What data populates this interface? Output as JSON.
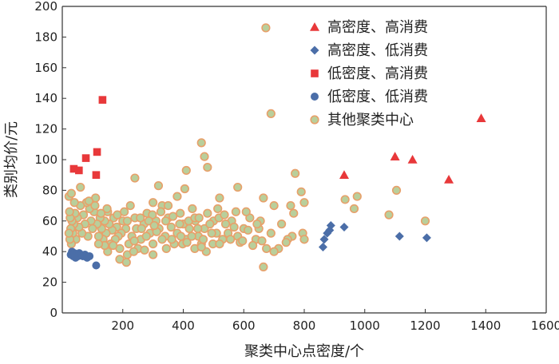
{
  "chart_data": {
    "type": "scatter",
    "xlabel": "聚类中心点密度/个",
    "ylabel": "类别均价/元",
    "xlim": [
      0,
      1600
    ],
    "ylim": [
      0,
      200
    ],
    "xticks": [
      200,
      400,
      600,
      800,
      1000,
      1200,
      1400,
      1600
    ],
    "yticks": [
      0,
      20,
      40,
      60,
      80,
      100,
      120,
      140,
      160,
      180,
      200
    ],
    "grid": false,
    "legend_position": "top-right",
    "series": [
      {
        "name": "高密度、高消费",
        "marker": "triangle",
        "color": "#e8383a",
        "points": [
          [
            932,
            90
          ],
          [
            1100,
            102
          ],
          [
            1158,
            100
          ],
          [
            1278,
            87
          ],
          [
            1385,
            127
          ]
        ]
      },
      {
        "name": "高密度、低消费",
        "marker": "diamond",
        "color": "#4b6ea8",
        "points": [
          [
            862,
            43
          ],
          [
            866,
            48
          ],
          [
            876,
            52
          ],
          [
            884,
            54
          ],
          [
            888,
            57
          ],
          [
            932,
            56
          ],
          [
            1115,
            50
          ],
          [
            1205,
            49
          ]
        ]
      },
      {
        "name": "低密度、高消费",
        "marker": "square",
        "color": "#e8383a",
        "points": [
          [
            38,
            94
          ],
          [
            55,
            93
          ],
          [
            78,
            101
          ],
          [
            112,
            90
          ],
          [
            115,
            105
          ],
          [
            133,
            139
          ]
        ]
      },
      {
        "name": "低密度、低消费",
        "marker": "circle",
        "color": "#4b6ea8",
        "points": [
          [
            28,
            38
          ],
          [
            32,
            40
          ],
          [
            36,
            37
          ],
          [
            40,
            39
          ],
          [
            44,
            36
          ],
          [
            48,
            38
          ],
          [
            52,
            37
          ],
          [
            56,
            39
          ],
          [
            62,
            38
          ],
          [
            68,
            37
          ],
          [
            75,
            38
          ],
          [
            82,
            36
          ],
          [
            90,
            37
          ],
          [
            112,
            31
          ]
        ]
      },
      {
        "name": "其他聚类中心",
        "marker": "circle-hollow",
        "color": "#e8a06a",
        "fill": "#b9cf9b",
        "points": [
          [
            673,
            186
          ],
          [
            690,
            130
          ],
          [
            460,
            111
          ],
          [
            470,
            102
          ],
          [
            480,
            95
          ],
          [
            410,
            93
          ],
          [
            240,
            88
          ],
          [
            405,
            81
          ],
          [
            580,
            82
          ],
          [
            318,
            83
          ],
          [
            300,
            72
          ],
          [
            330,
            70
          ],
          [
            350,
            70
          ],
          [
            380,
            76
          ],
          [
            520,
            75
          ],
          [
            770,
            91
          ],
          [
            665,
            75
          ],
          [
            700,
            70
          ],
          [
            755,
            70
          ],
          [
            800,
            72
          ],
          [
            790,
            79
          ],
          [
            935,
            74
          ],
          [
            975,
            76
          ],
          [
            1105,
            80
          ],
          [
            1080,
            64
          ],
          [
            1200,
            60
          ],
          [
            765,
            65
          ],
          [
            655,
            60
          ],
          [
            620,
            62
          ],
          [
            760,
            50
          ],
          [
            795,
            52
          ],
          [
            800,
            48
          ],
          [
            745,
            48
          ],
          [
            715,
            42
          ],
          [
            700,
            40
          ],
          [
            675,
            42
          ],
          [
            665,
            30
          ],
          [
            650,
            55
          ],
          [
            640,
            48
          ],
          [
            600,
            55
          ],
          [
            580,
            50
          ],
          [
            560,
            60
          ],
          [
            540,
            58
          ],
          [
            530,
            48
          ],
          [
            510,
            52
          ],
          [
            500,
            60
          ],
          [
            480,
            65
          ],
          [
            470,
            55
          ],
          [
            460,
            45
          ],
          [
            450,
            50
          ],
          [
            440,
            60
          ],
          [
            430,
            68
          ],
          [
            420,
            55
          ],
          [
            410,
            48
          ],
          [
            400,
            58
          ],
          [
            390,
            65
          ],
          [
            380,
            52
          ],
          [
            370,
            45
          ],
          [
            360,
            56
          ],
          [
            350,
            62
          ],
          [
            340,
            50
          ],
          [
            330,
            48
          ],
          [
            320,
            55
          ],
          [
            310,
            60
          ],
          [
            300,
            45
          ],
          [
            290,
            52
          ],
          [
            280,
            65
          ],
          [
            270,
            58
          ],
          [
            260,
            48
          ],
          [
            250,
            42
          ],
          [
            245,
            55
          ],
          [
            240,
            62
          ],
          [
            230,
            50
          ],
          [
            220,
            45
          ],
          [
            215,
            38
          ],
          [
            210,
            55
          ],
          [
            200,
            60
          ],
          [
            195,
            52
          ],
          [
            190,
            42
          ],
          [
            185,
            50
          ],
          [
            180,
            56
          ],
          [
            175,
            48
          ],
          [
            170,
            62
          ],
          [
            165,
            54
          ],
          [
            160,
            45
          ],
          [
            155,
            58
          ],
          [
            150,
            66
          ],
          [
            145,
            52
          ],
          [
            140,
            60
          ],
          [
            135,
            48
          ],
          [
            130,
            55
          ],
          [
            125,
            62
          ],
          [
            120,
            50
          ],
          [
            115,
            58
          ],
          [
            110,
            75
          ],
          [
            105,
            66
          ],
          [
            100,
            55
          ],
          [
            95,
            60
          ],
          [
            90,
            68
          ],
          [
            85,
            50
          ],
          [
            80,
            72
          ],
          [
            75,
            58
          ],
          [
            70,
            64
          ],
          [
            65,
            52
          ],
          [
            60,
            70
          ],
          [
            55,
            56
          ],
          [
            50,
            62
          ],
          [
            45,
            48
          ],
          [
            42,
            65
          ],
          [
            40,
            72
          ],
          [
            38,
            58
          ],
          [
            35,
            52
          ],
          [
            32,
            60
          ],
          [
            30,
            45
          ],
          [
            28,
            55
          ],
          [
            26,
            62
          ],
          [
            25,
            48
          ],
          [
            24,
            66
          ],
          [
            22,
            52
          ],
          [
            22,
            76
          ],
          [
            30,
            78
          ],
          [
            60,
            82
          ],
          [
            88,
            73
          ],
          [
            108,
            70
          ],
          [
            128,
            65
          ],
          [
            148,
            68
          ],
          [
            168,
            44
          ],
          [
            182,
            64
          ],
          [
            205,
            66
          ],
          [
            225,
            70
          ],
          [
            258,
            62
          ],
          [
            278,
            50
          ],
          [
            298,
            64
          ],
          [
            312,
            53
          ],
          [
            342,
            60
          ],
          [
            362,
            48
          ],
          [
            388,
            58
          ],
          [
            398,
            45
          ],
          [
            418,
            60
          ],
          [
            438,
            62
          ],
          [
            448,
            55
          ],
          [
            466,
            48
          ],
          [
            488,
            58
          ],
          [
            498,
            45
          ],
          [
            518,
            62
          ],
          [
            548,
            52
          ],
          [
            568,
            56
          ],
          [
            588,
            46
          ],
          [
            608,
            66
          ],
          [
            630,
            44
          ],
          [
            660,
            47
          ],
          [
            690,
            52
          ],
          [
            725,
            58
          ],
          [
            740,
            46
          ],
          [
            965,
            68
          ],
          [
            215,
            60
          ],
          [
            238,
            47
          ],
          [
            262,
            55
          ],
          [
            286,
            60
          ],
          [
            304,
            57
          ],
          [
            326,
            66
          ],
          [
            344,
            42
          ],
          [
            366,
            63
          ],
          [
            392,
            50
          ],
          [
            412,
            46
          ],
          [
            428,
            50
          ],
          [
            452,
            62
          ],
          [
            476,
            40
          ],
          [
            494,
            52
          ],
          [
            514,
            68
          ],
          [
            536,
            64
          ],
          [
            556,
            48
          ],
          [
            574,
            66
          ],
          [
            596,
            47
          ],
          [
            614,
            54
          ],
          [
            644,
            58
          ],
          [
            190,
            35
          ],
          [
            212,
            33
          ],
          [
            236,
            40
          ],
          [
            272,
            41
          ],
          [
            300,
            38
          ],
          [
            438,
            42
          ],
          [
            520,
            45
          ],
          [
            460,
            43
          ],
          [
            150,
            40
          ],
          [
            140,
            44
          ],
          [
            120,
            45
          ]
        ]
      }
    ]
  }
}
